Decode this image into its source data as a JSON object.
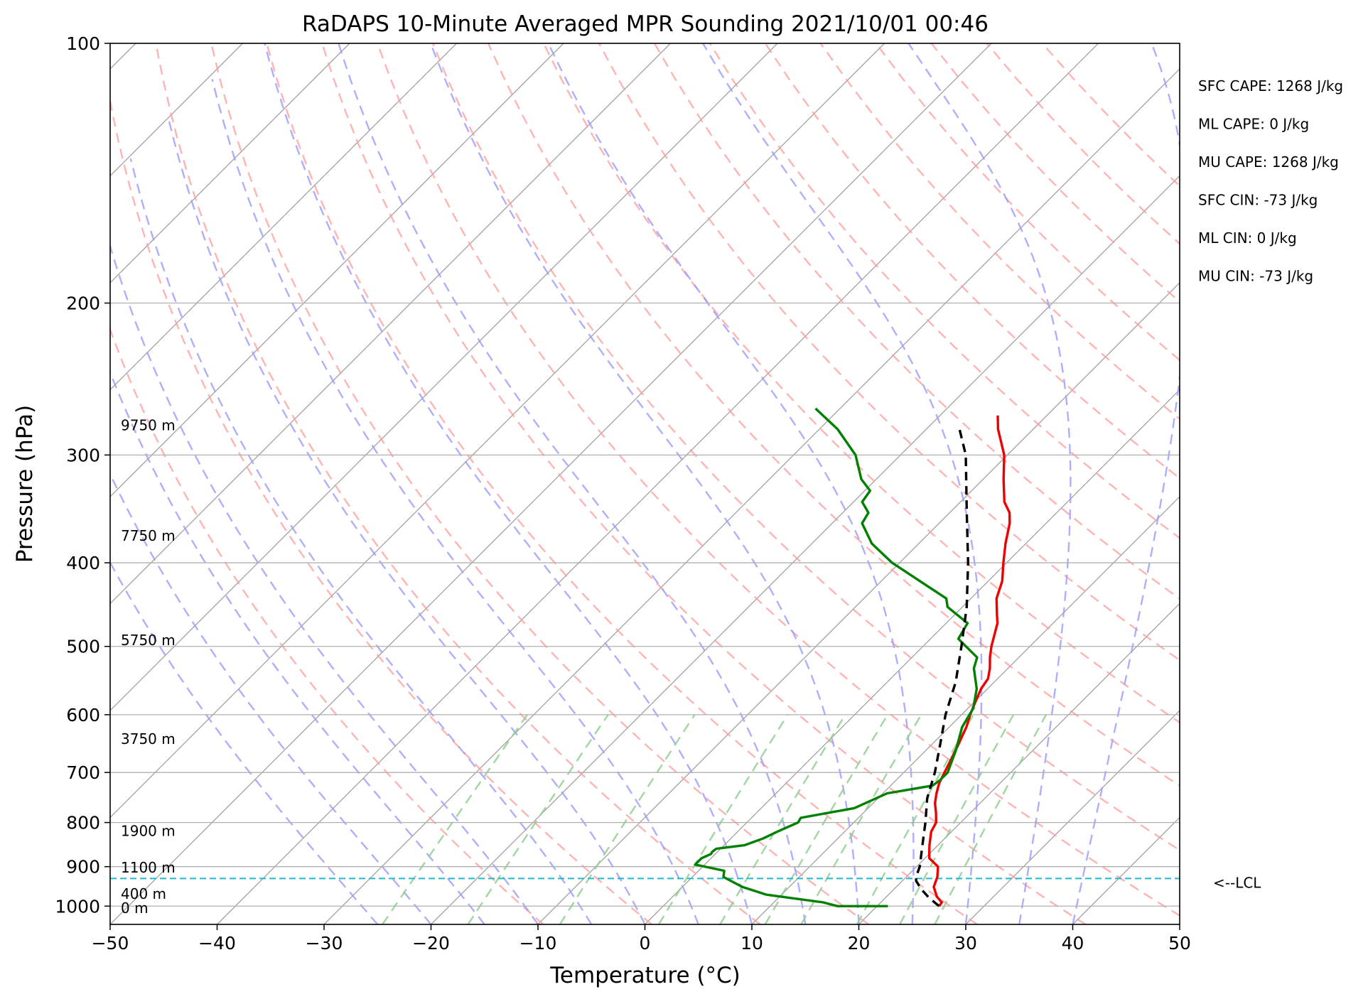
{
  "chart_data": {
    "type": "line",
    "subtype": "skew-T log-p sounding",
    "title": "RaDAPS 10-Minute Averaged MPR Sounding 2021/10/01 00:46",
    "xlabel": "Temperature (°C)",
    "ylabel": "Pressure (hPa)",
    "xlim": [
      -50,
      50
    ],
    "ylim": [
      1050,
      100
    ],
    "y_scale": "log",
    "grid": true,
    "x_ticks": [
      {
        "value": -50,
        "label": "−50"
      },
      {
        "value": -40,
        "label": "−40"
      },
      {
        "value": -30,
        "label": "−30"
      },
      {
        "value": -20,
        "label": "−20"
      },
      {
        "value": -10,
        "label": "−10"
      },
      {
        "value": 0,
        "label": "0"
      },
      {
        "value": 10,
        "label": "10"
      },
      {
        "value": 20,
        "label": "20"
      },
      {
        "value": 30,
        "label": "30"
      },
      {
        "value": 40,
        "label": "40"
      },
      {
        "value": 50,
        "label": "50"
      }
    ],
    "y_ticks": [
      {
        "value": 100,
        "label": "100"
      },
      {
        "value": 200,
        "label": "200"
      },
      {
        "value": 300,
        "label": "300"
      },
      {
        "value": 400,
        "label": "400"
      },
      {
        "value": 500,
        "label": "500"
      },
      {
        "value": 600,
        "label": "600"
      },
      {
        "value": 700,
        "label": "700"
      },
      {
        "value": 800,
        "label": "800"
      },
      {
        "value": 900,
        "label": "900"
      },
      {
        "value": 1000,
        "label": "1000"
      }
    ],
    "series": [
      {
        "id": "temperature",
        "color": "#ee0000",
        "points": [
          [
            1000,
            25.8
          ],
          [
            990,
            25.7
          ],
          [
            975,
            24.7
          ],
          [
            950,
            23.5
          ],
          [
            925,
            22.9
          ],
          [
            900,
            22.0
          ],
          [
            880,
            20.4
          ],
          [
            860,
            19.6
          ],
          [
            850,
            19.2
          ],
          [
            820,
            18.1
          ],
          [
            800,
            17.7
          ],
          [
            780,
            16.8
          ],
          [
            760,
            15.8
          ],
          [
            740,
            15.0
          ],
          [
            720,
            14.3
          ],
          [
            700,
            13.8
          ],
          [
            680,
            13.3
          ],
          [
            650,
            12.5
          ],
          [
            620,
            11.6
          ],
          [
            600,
            10.8
          ],
          [
            580,
            10.1
          ],
          [
            560,
            9.4
          ],
          [
            545,
            9.1
          ],
          [
            530,
            8.3
          ],
          [
            515,
            7.3
          ],
          [
            500,
            6.4
          ],
          [
            470,
            4.8
          ],
          [
            460,
            4.0
          ],
          [
            440,
            2.4
          ],
          [
            420,
            1.3
          ],
          [
            400,
            -0.3
          ],
          [
            380,
            -1.9
          ],
          [
            360,
            -3.4
          ],
          [
            350,
            -4.4
          ],
          [
            340,
            -5.9
          ],
          [
            320,
            -8.1
          ],
          [
            300,
            -10.3
          ],
          [
            280,
            -13.3
          ],
          [
            270,
            -14.6
          ]
        ]
      },
      {
        "id": "dewpoint",
        "color": "#008000",
        "points": [
          [
            1000,
            21.0
          ],
          [
            1000,
            16.3
          ],
          [
            990,
            14.6
          ],
          [
            970,
            8.6
          ],
          [
            950,
            5.6
          ],
          [
            925,
            2.9
          ],
          [
            910,
            2.4
          ],
          [
            895,
            -0.9
          ],
          [
            880,
            -0.9
          ],
          [
            870,
            -0.4
          ],
          [
            865,
            -0.5
          ],
          [
            858,
            -0.4
          ],
          [
            850,
            1.9
          ],
          [
            835,
            3.0
          ],
          [
            820,
            3.7
          ],
          [
            800,
            4.8
          ],
          [
            790,
            4.6
          ],
          [
            770,
            8.7
          ],
          [
            740,
            10.4
          ],
          [
            725,
            13.9
          ],
          [
            715,
            14.1
          ],
          [
            700,
            14.1
          ],
          [
            660,
            12.8
          ],
          [
            620,
            11.2
          ],
          [
            590,
            10.5
          ],
          [
            560,
            9.0
          ],
          [
            530,
            6.8
          ],
          [
            515,
            6.1
          ],
          [
            490,
            2.6
          ],
          [
            470,
            2.0
          ],
          [
            450,
            -1.4
          ],
          [
            440,
            -2.3
          ],
          [
            420,
            -6.4
          ],
          [
            400,
            -10.7
          ],
          [
            380,
            -14.4
          ],
          [
            360,
            -17.2
          ],
          [
            350,
            -17.6
          ],
          [
            340,
            -19.2
          ],
          [
            330,
            -19.5
          ],
          [
            320,
            -21.4
          ],
          [
            300,
            -24.2
          ],
          [
            280,
            -28.3
          ],
          [
            265,
            -32.3
          ]
        ]
      },
      {
        "id": "parcel-profile",
        "color": "#000000",
        "dash": "12,8",
        "points": [
          [
            1000,
            25.8
          ],
          [
            977,
            24.0
          ],
          [
            955,
            22.5
          ],
          [
            935,
            21.3
          ],
          [
            925,
            20.9
          ],
          [
            900,
            20.3
          ],
          [
            860,
            18.9
          ],
          [
            800,
            16.7
          ],
          [
            750,
            14.6
          ],
          [
            700,
            12.9
          ],
          [
            650,
            10.8
          ],
          [
            600,
            8.5
          ],
          [
            550,
            6.4
          ],
          [
            500,
            3.6
          ],
          [
            450,
            0.4
          ],
          [
            400,
            -3.6
          ],
          [
            350,
            -8.4
          ],
          [
            300,
            -13.9
          ],
          [
            280,
            -16.9
          ]
        ]
      }
    ],
    "dry_adiabats_theta_K": [
      260,
      270,
      280,
      290,
      300,
      310,
      320,
      330,
      340,
      350,
      360,
      370,
      380,
      390,
      400,
      410,
      420,
      430,
      440
    ],
    "moist_adiabats_start_C": [
      -25,
      -20,
      -15,
      -10,
      -5,
      0,
      5,
      10,
      15,
      20,
      25,
      30,
      35,
      40
    ],
    "mixing_ratio_lines_g_per_kg": [
      0.5,
      1,
      2,
      4,
      6,
      8,
      10,
      14,
      18,
      22
    ],
    "lcl_pressure_hPa": 929,
    "annotations": {
      "heights": [
        {
          "label": "9750 m",
          "pressure": 277
        },
        {
          "label": "7750 m",
          "pressure": 372
        },
        {
          "label": "5750 m",
          "pressure": 492
        },
        {
          "label": "3750 m",
          "pressure": 640
        },
        {
          "label": "1900 m",
          "pressure": 818
        },
        {
          "label": "1100 m",
          "pressure": 902
        },
        {
          "label": "400 m",
          "pressure": 968
        },
        {
          "label": "0 m",
          "pressure": 1005
        }
      ],
      "stats": [
        "SFC CAPE: 1268 J/kg",
        "ML CAPE: 0 J/kg",
        "MU CAPE: 1268 J/kg",
        "SFC CIN: -73 J/kg",
        "ML CIN: 0 J/kg",
        "MU CIN: -73 J/kg"
      ],
      "lcl_label": "<--LCL"
    }
  },
  "colors": {
    "grid": "#b0b0b0",
    "skew_isotherm": "#a0a0a0",
    "dry_adiabat": "#ff9a9a",
    "moist_adiabat": "#9a9aff",
    "mixing_ratio": "#8fcf8f",
    "lcl_line": "#17becf"
  }
}
